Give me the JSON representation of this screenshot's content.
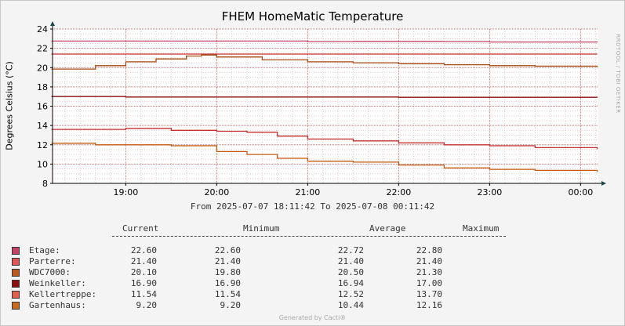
{
  "chart_data": {
    "type": "line",
    "title": "FHEM HomeMatic Temperature",
    "ylabel": "Degrees Celsius (°C)",
    "xlabel": "",
    "ylim": [
      8,
      24
    ],
    "xlim": [
      "18:11:42",
      "00:11:42"
    ],
    "y_ticks": [
      "8",
      "10",
      "12",
      "14",
      "16",
      "18",
      "20",
      "22",
      "24"
    ],
    "x_ticks": [
      {
        "label": "19:00",
        "t": "19:00"
      },
      {
        "label": "20:00",
        "t": "20:00"
      },
      {
        "label": "21:00",
        "t": "21:00"
      },
      {
        "label": "22:00",
        "t": "22:00"
      },
      {
        "label": "23:00",
        "t": "23:00"
      },
      {
        "label": "00:00",
        "t": "00:00"
      }
    ],
    "grid": true,
    "series": [
      {
        "name": "Etage",
        "color": "#c44466",
        "x": [
          "18:11",
          "20:00",
          "21:00",
          "21:30",
          "22:30",
          "23:00",
          "00:11"
        ],
        "y": [
          22.75,
          22.75,
          22.7,
          22.72,
          22.7,
          22.65,
          22.6
        ]
      },
      {
        "name": "Parterre",
        "color": "#c43030",
        "x": [
          "18:11",
          "00:11"
        ],
        "y": [
          21.4,
          21.4
        ]
      },
      {
        "name": "WDC7000",
        "color": "#a84a10",
        "x": [
          "18:11",
          "18:40",
          "19:00",
          "19:20",
          "19:40",
          "19:50",
          "20:00",
          "20:30",
          "21:00",
          "21:30",
          "22:00",
          "22:30",
          "23:00",
          "23:30",
          "00:11"
        ],
        "y": [
          19.85,
          20.2,
          20.6,
          20.9,
          21.2,
          21.3,
          21.1,
          20.8,
          20.6,
          20.5,
          20.4,
          20.3,
          20.2,
          20.15,
          20.1
        ]
      },
      {
        "name": "Weinkeller",
        "color": "#8a1010",
        "x": [
          "18:11",
          "19:00",
          "20:00",
          "21:00",
          "22:00",
          "23:00",
          "00:11"
        ],
        "y": [
          17.0,
          16.95,
          16.95,
          16.95,
          16.92,
          16.92,
          16.9
        ]
      },
      {
        "name": "Kellertreppe",
        "color": "#c43030",
        "x": [
          "18:11",
          "18:40",
          "19:00",
          "19:30",
          "20:00",
          "20:20",
          "20:40",
          "21:00",
          "21:30",
          "22:00",
          "22:30",
          "23:00",
          "23:30",
          "00:11"
        ],
        "y": [
          13.6,
          13.6,
          13.7,
          13.5,
          13.4,
          13.3,
          12.9,
          12.6,
          12.4,
          12.2,
          12.0,
          11.9,
          11.7,
          11.54
        ]
      },
      {
        "name": "Gartenhaus",
        "color": "#c45a10",
        "x": [
          "18:11",
          "18:40",
          "19:00",
          "19:30",
          "20:00",
          "20:20",
          "20:40",
          "21:00",
          "21:30",
          "22:00",
          "22:30",
          "23:00",
          "23:30",
          "00:11"
        ],
        "y": [
          12.16,
          12.0,
          12.0,
          11.9,
          11.3,
          11.0,
          10.6,
          10.3,
          10.2,
          9.9,
          9.6,
          9.45,
          9.35,
          9.2
        ]
      }
    ]
  },
  "range_text": "From 2025-07-07 18:11:42 To 2025-07-08 00:11:42",
  "legend": {
    "headers": {
      "current": "Current",
      "minimum": "Minimum",
      "average": "Average",
      "maximum": "Maximum"
    },
    "rows": [
      {
        "name": "Etage:",
        "color": "#c44466",
        "current": "22.60",
        "minimum": "22.60",
        "average": "22.72",
        "maximum": "22.80"
      },
      {
        "name": "Parterre:",
        "color": "#e05858",
        "current": "21.40",
        "minimum": "21.40",
        "average": "21.40",
        "maximum": "21.40"
      },
      {
        "name": "WDC7000:",
        "color": "#b85a22",
        "current": "20.10",
        "minimum": "19.80",
        "average": "20.50",
        "maximum": "21.30"
      },
      {
        "name": "Weinkeller:",
        "color": "#8a1010",
        "current": "16.90",
        "minimum": "16.90",
        "average": "16.94",
        "maximum": "17.00"
      },
      {
        "name": "Kellertreppe:",
        "color": "#e06050",
        "current": "11.54",
        "minimum": "11.54",
        "average": "12.52",
        "maximum": "13.70"
      },
      {
        "name": "Gartenhaus:",
        "color": "#c86a20",
        "current": "9.20",
        "minimum": "9.20",
        "average": "10.44",
        "maximum": "12.16"
      }
    ]
  },
  "watermark": "RRDTOOL / TOBI OETIKER",
  "footer": "Generated by Cacti®"
}
